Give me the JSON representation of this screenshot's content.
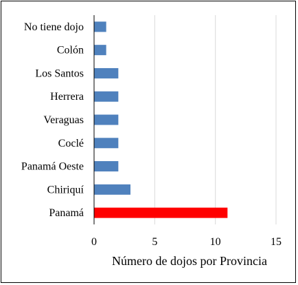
{
  "chart_data": {
    "type": "bar",
    "orientation": "horizontal",
    "title": "",
    "xlabel": "Número de dojos por Provincia",
    "ylabel": "",
    "categories": [
      "No tiene dojo",
      "Colón",
      "Los Santos",
      "Herrera",
      "Veraguas",
      "Coclé",
      "Panamá Oeste",
      "Chiriquí",
      "Panamá"
    ],
    "values": [
      1,
      1,
      2,
      2,
      2,
      2,
      2,
      3,
      11
    ],
    "xlim": [
      0,
      15
    ],
    "xticks": [
      0,
      5,
      10,
      15
    ],
    "grid": true,
    "colors": {
      "default": "#4f81bd",
      "highlight": "#ff0000",
      "highlight_category": "Panamá",
      "grid": "#d9d9d9",
      "axis": "#000000"
    }
  }
}
